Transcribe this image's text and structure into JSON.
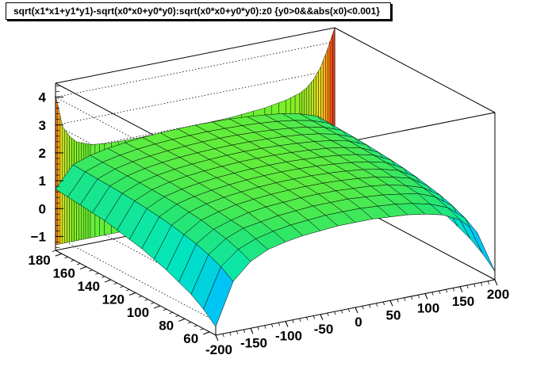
{
  "chart_data": {
    "type": "surface",
    "title": "sqrt(x1*x1+y1*y1)-sqrt(x0*x0+y0*y0):sqrt(x0*x0+y0*y0):z0 {y0>0&&abs(x0)<0.001}",
    "xlabel": "",
    "ylabel": "",
    "zlabel": "",
    "xlim": [
      -200,
      200
    ],
    "ylim": [
      55,
      185
    ],
    "zlim": [
      -1.5,
      4.5
    ],
    "x_ticks": [
      "-200",
      "-150",
      "-100",
      "-50",
      "0",
      "50",
      "100",
      "150",
      "200"
    ],
    "y_ticks": [
      "60",
      "80",
      "100",
      "120",
      "140",
      "160",
      "180"
    ],
    "z_ticks": [
      "-1",
      "0",
      "1",
      "2",
      "3",
      "4"
    ],
    "x_grid": [
      -200,
      -175,
      -150,
      -125,
      -100,
      -75,
      -50,
      -25,
      0,
      25,
      50,
      75,
      100,
      125,
      150,
      175,
      200
    ],
    "y_grid": [
      55,
      65,
      75,
      85,
      95,
      105,
      115,
      125,
      135,
      145,
      155,
      165,
      175,
      185
    ],
    "z_values": [
      [
        -1.2,
        0.3,
        0.9,
        1.2,
        1.35,
        1.45,
        1.5,
        1.55,
        1.55,
        1.55,
        1.5,
        1.45,
        1.35,
        1.2,
        0.9,
        0.3,
        -1.2
      ],
      [
        -0.8,
        0.6,
        1.1,
        1.35,
        1.5,
        1.6,
        1.65,
        1.7,
        1.7,
        1.7,
        1.65,
        1.6,
        1.5,
        1.35,
        1.1,
        0.6,
        -0.8
      ],
      [
        -0.5,
        0.8,
        1.25,
        1.5,
        1.6,
        1.7,
        1.75,
        1.8,
        1.8,
        1.8,
        1.75,
        1.7,
        1.6,
        1.5,
        1.25,
        0.8,
        -0.5
      ],
      [
        -0.3,
        0.95,
        1.35,
        1.55,
        1.7,
        1.78,
        1.82,
        1.86,
        1.87,
        1.86,
        1.82,
        1.78,
        1.7,
        1.55,
        1.35,
        0.95,
        -0.3
      ],
      [
        -0.1,
        1.05,
        1.45,
        1.62,
        1.75,
        1.82,
        1.87,
        1.9,
        1.91,
        1.9,
        1.87,
        1.82,
        1.75,
        1.62,
        1.45,
        1.05,
        -0.1
      ],
      [
        0.05,
        1.15,
        1.5,
        1.67,
        1.78,
        1.85,
        1.9,
        1.93,
        1.94,
        1.93,
        1.9,
        1.85,
        1.78,
        1.67,
        1.5,
        1.15,
        0.05
      ],
      [
        0.2,
        1.22,
        1.55,
        1.7,
        1.8,
        1.87,
        1.92,
        1.95,
        1.96,
        1.95,
        1.92,
        1.87,
        1.8,
        1.7,
        1.55,
        1.22,
        0.2
      ],
      [
        0.3,
        1.28,
        1.58,
        1.73,
        1.82,
        1.89,
        1.93,
        1.96,
        1.97,
        1.96,
        1.93,
        1.89,
        1.82,
        1.73,
        1.58,
        1.28,
        0.3
      ],
      [
        0.4,
        1.32,
        1.6,
        1.75,
        1.84,
        1.9,
        1.94,
        1.97,
        1.98,
        1.97,
        1.94,
        1.9,
        1.84,
        1.75,
        1.6,
        1.32,
        0.4
      ],
      [
        0.5,
        1.36,
        1.62,
        1.76,
        1.85,
        1.91,
        1.95,
        1.98,
        1.99,
        1.98,
        1.95,
        1.91,
        1.85,
        1.76,
        1.62,
        1.36,
        0.5
      ],
      [
        0.55,
        1.39,
        1.63,
        1.77,
        1.86,
        1.92,
        1.96,
        1.98,
        1.99,
        1.98,
        1.96,
        1.92,
        1.86,
        1.77,
        1.63,
        1.39,
        0.55
      ],
      [
        0.6,
        1.41,
        1.64,
        1.78,
        1.86,
        1.92,
        1.96,
        1.99,
        2.0,
        1.99,
        1.96,
        1.92,
        1.86,
        1.78,
        1.64,
        1.41,
        0.6
      ],
      [
        0.65,
        1.43,
        1.65,
        1.78,
        1.87,
        1.93,
        1.97,
        1.99,
        2.0,
        1.99,
        1.97,
        1.93,
        1.87,
        1.78,
        1.65,
        1.43,
        0.65
      ],
      [
        0.7,
        1.45,
        1.66,
        1.79,
        1.87,
        1.93,
        1.97,
        1.99,
        2.0,
        1.99,
        1.97,
        1.93,
        1.87,
        1.79,
        1.66,
        1.45,
        0.7
      ]
    ],
    "back_wall_profile": {
      "description_free": true,
      "x": [
        -200,
        -190,
        -180,
        -170,
        -160,
        -150,
        -130,
        -100,
        -50,
        0,
        50,
        100,
        130,
        150,
        160,
        170,
        180,
        190,
        200
      ],
      "z": [
        4.1,
        2.9,
        2.5,
        2.25,
        2.15,
        2.05,
        1.98,
        1.95,
        1.95,
        1.98,
        2.02,
        2.12,
        2.25,
        2.4,
        2.55,
        2.8,
        3.2,
        3.8,
        4.5
      ]
    },
    "grid": true,
    "legend": "none"
  }
}
